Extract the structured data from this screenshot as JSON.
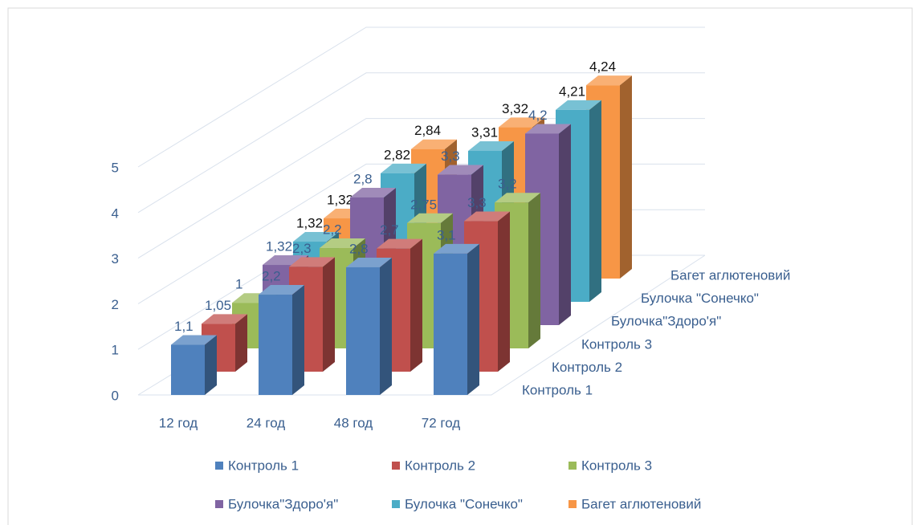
{
  "chart_data": {
    "type": "bar3d",
    "categories": [
      "12 год",
      "24 год",
      "48 год",
      "72 год"
    ],
    "series": [
      {
        "name": "Контроль 1",
        "color": "#4f81bd",
        "values": [
          1.1,
          2.2,
          2.8,
          3.1
        ],
        "value_labels": [
          "1,1",
          "2,2",
          "2,8",
          "3,1"
        ]
      },
      {
        "name": "Контроль 2",
        "color": "#c0504d",
        "values": [
          1.05,
          2.3,
          2.7,
          3.3
        ],
        "value_labels": [
          "1,05",
          "2,3",
          "2,7",
          "3,3"
        ]
      },
      {
        "name": "Контроль 3",
        "color": "#9bbb59",
        "values": [
          1,
          2.2,
          2.75,
          3.2
        ],
        "value_labels": [
          "1",
          "2,2",
          "2,75",
          "3,2"
        ]
      },
      {
        "name": "Булочка\"Здоро'я\"",
        "color": "#8064a2",
        "values": [
          1.32,
          2.8,
          3.3,
          4.2
        ],
        "value_labels": [
          "1,32",
          "2,8",
          "3,3",
          "4,2"
        ]
      },
      {
        "name": "Булочка \"Сонечко\"",
        "color": "#4bacc6",
        "values": [
          1.32,
          2.82,
          3.31,
          4.21
        ],
        "value_labels": [
          "1,32",
          "2,82",
          "3,31",
          "4,21"
        ]
      },
      {
        "name": "Багет аглютеновий",
        "color": "#f79646",
        "values": [
          1.32,
          2.84,
          3.32,
          4.24
        ],
        "value_labels": [
          "1,32",
          "2,84",
          "3,32",
          "4,24"
        ]
      }
    ],
    "ylim": [
      0,
      5
    ],
    "yticks": [
      0,
      1,
      2,
      3,
      4,
      5
    ],
    "grid": true,
    "legend": "bottom"
  }
}
